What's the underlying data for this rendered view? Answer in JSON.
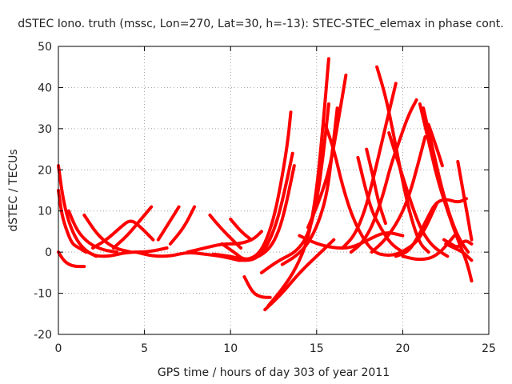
{
  "chart_data": {
    "type": "scatter",
    "title": "dSTEC Iono. truth (mssc, Lon=270, Lat=30, h=-13): STEC-STEC_elemax in phase cont.",
    "xlabel": "GPS time / hours of day 303 of year 2011",
    "ylabel": "dSTEC  / TECUs",
    "xlim": [
      0,
      25
    ],
    "ylim": [
      -20,
      50
    ],
    "xticks": [
      0,
      5,
      10,
      15,
      20,
      25
    ],
    "yticks": [
      -20,
      -10,
      0,
      10,
      20,
      30,
      40,
      50
    ],
    "grid": true,
    "marker_color": "#ff0000",
    "series": [
      {
        "x": [
          0.0,
          0.3,
          0.7,
          1.2,
          1.7,
          2.2
        ],
        "y": [
          21,
          12,
          6,
          2,
          0,
          -1
        ]
      },
      {
        "x": [
          0.0,
          0.2,
          0.5,
          0.8,
          1.2,
          1.6
        ],
        "y": [
          15,
          9,
          5,
          2,
          1,
          0
        ]
      },
      {
        "x": [
          0.0,
          0.3,
          0.6,
          1.0,
          1.5
        ],
        "y": [
          0,
          -2,
          -3,
          -3.5,
          -3.5
        ]
      },
      {
        "x": [
          0.6,
          1.1,
          1.8,
          2.6,
          3.4
        ],
        "y": [
          10,
          5,
          2,
          0.5,
          0
        ]
      },
      {
        "x": [
          1.5,
          2.3,
          3.2,
          4.2
        ],
        "y": [
          9,
          4,
          1,
          0
        ]
      },
      {
        "x": [
          1.7,
          2.2,
          3.0,
          4.0,
          5.2,
          6.3
        ],
        "y": [
          0,
          -1,
          -1,
          0,
          0,
          1
        ]
      },
      {
        "x": [
          2.0,
          2.8,
          3.6,
          4.2,
          4.8,
          5.5
        ],
        "y": [
          1,
          3,
          6,
          8,
          6,
          3
        ]
      },
      {
        "x": [
          3.2,
          4.0,
          4.8,
          5.4
        ],
        "y": [
          1,
          4,
          8,
          11
        ]
      },
      {
        "x": [
          4.5,
          5.5,
          6.5,
          7.5,
          8.5,
          9.5,
          10.5
        ],
        "y": [
          0,
          -1,
          -1,
          0,
          -0.5,
          -1,
          -2
        ]
      },
      {
        "x": [
          5.8,
          6.4,
          7.0
        ],
        "y": [
          3,
          7,
          11
        ]
      },
      {
        "x": [
          6.5,
          7.3,
          7.9
        ],
        "y": [
          2,
          6,
          11
        ]
      },
      {
        "x": [
          8.8,
          9.4,
          10.1,
          10.6
        ],
        "y": [
          9,
          6,
          3,
          1
        ]
      },
      {
        "x": [
          7.5,
          8.5,
          9.5,
          10.5,
          11.3,
          11.8
        ],
        "y": [
          0,
          1,
          2,
          2,
          3,
          5
        ]
      },
      {
        "x": [
          10.0,
          10.6,
          11.2
        ],
        "y": [
          8,
          5,
          3
        ]
      },
      {
        "x": [
          9.5,
          10.2,
          10.8,
          11.5,
          12.0,
          12.5,
          12.9,
          13.3,
          13.5
        ],
        "y": [
          2,
          0,
          -2,
          -1,
          2,
          8,
          16,
          26,
          34
        ]
      },
      {
        "x": [
          10.5,
          11.3,
          11.9,
          12.4,
          12.8,
          13.2,
          13.6
        ],
        "y": [
          -2,
          -2,
          0,
          4,
          9,
          16,
          24
        ]
      },
      {
        "x": [
          9.0,
          10.0,
          11.0,
          11.7,
          12.3,
          12.8,
          13.2,
          13.7
        ],
        "y": [
          -0.5,
          -1,
          -2,
          -1,
          1,
          5,
          11,
          21
        ]
      },
      {
        "x": [
          10.8,
          11.3,
          11.8,
          12.3
        ],
        "y": [
          -6,
          -10,
          -11,
          -11
        ]
      },
      {
        "x": [
          12.0,
          13.0,
          14.0,
          15.0,
          16.0
        ],
        "y": [
          -14,
          -10,
          -5,
          -1,
          3
        ]
      },
      {
        "x": [
          12.2,
          13.0,
          13.8,
          14.5,
          14.9,
          15.2,
          15.5,
          15.7
        ],
        "y": [
          -13,
          -9,
          -4,
          3,
          12,
          23,
          37,
          47
        ]
      },
      {
        "x": [
          11.8,
          12.8,
          13.8,
          14.5,
          15.0,
          15.4,
          15.7
        ],
        "y": [
          -5,
          -2,
          0,
          4,
          12,
          24,
          36
        ]
      },
      {
        "x": [
          13.0,
          13.8,
          14.5,
          15.1,
          15.6,
          15.9,
          16.2
        ],
        "y": [
          -3,
          -1,
          2,
          7,
          14,
          24,
          35
        ]
      },
      {
        "x": [
          14.5,
          15.2,
          15.8,
          16.3,
          16.7
        ],
        "y": [
          6,
          13,
          21,
          33,
          43
        ]
      },
      {
        "x": [
          15.5,
          16.0,
          16.5,
          17.2,
          18.2,
          19.2,
          20.0,
          21.0,
          22.0
        ],
        "y": [
          31,
          25,
          16,
          7,
          0,
          -1,
          0,
          3,
          12
        ]
      },
      {
        "x": [
          14.0,
          15.0,
          16.0,
          17.0,
          18.0,
          19.0,
          20.0
        ],
        "y": [
          4,
          2,
          1,
          1,
          3,
          5,
          4
        ]
      },
      {
        "x": [
          17.4,
          17.8,
          18.2,
          18.7,
          19.3,
          20.0
        ],
        "y": [
          23,
          16,
          10,
          6,
          2,
          0
        ]
      },
      {
        "x": [
          17.9,
          18.3,
          18.6,
          19.0
        ],
        "y": [
          25,
          18,
          12,
          7
        ]
      },
      {
        "x": [
          18.5,
          19.0,
          19.5,
          20.0,
          20.5,
          21.0,
          21.5
        ],
        "y": [
          45,
          38,
          28,
          17,
          8,
          2,
          0
        ]
      },
      {
        "x": [
          16.5,
          17.2,
          17.8,
          18.3,
          18.8,
          19.2,
          19.6
        ],
        "y": [
          1,
          4,
          10,
          18,
          27,
          34,
          41
        ]
      },
      {
        "x": [
          17.0,
          17.6,
          18.2,
          18.8,
          19.3,
          19.8,
          20.3,
          20.8
        ],
        "y": [
          0,
          2,
          6,
          13,
          21,
          27,
          33,
          37
        ]
      },
      {
        "x": [
          19.2,
          19.8,
          20.4,
          21.0,
          21.6,
          22.2,
          22.6
        ],
        "y": [
          29,
          21,
          13,
          6,
          2,
          0,
          -1
        ]
      },
      {
        "x": [
          18.2,
          19.0,
          19.8,
          20.4,
          20.8,
          21.3
        ],
        "y": [
          0,
          3,
          8,
          14,
          20,
          28
        ]
      },
      {
        "x": [
          19.6,
          20.3,
          20.8,
          21.4,
          21.9,
          22.5,
          23.2,
          23.7
        ],
        "y": [
          -1,
          0,
          3,
          8,
          12,
          13,
          12,
          13
        ]
      },
      {
        "x": [
          21.0,
          21.5,
          22.0,
          22.6,
          23.2,
          23.7,
          24.0
        ],
        "y": [
          36,
          27,
          18,
          10,
          3,
          -2,
          -7
        ]
      },
      {
        "x": [
          21.2,
          21.8,
          22.3,
          22.8,
          23.3,
          23.8
        ],
        "y": [
          35,
          24,
          15,
          8,
          3,
          0
        ]
      },
      {
        "x": [
          21.5,
          22.0,
          22.3
        ],
        "y": [
          31,
          25,
          21
        ]
      },
      {
        "x": [
          22.4,
          22.8,
          23.2,
          23.6,
          24.0
        ],
        "y": [
          3,
          2,
          1,
          3,
          2
        ]
      },
      {
        "x": [
          23.2,
          23.5,
          23.8,
          24.0
        ],
        "y": [
          22,
          15,
          8,
          3
        ]
      },
      {
        "x": [
          22.5,
          23.0,
          23.5,
          24.0
        ],
        "y": [
          2,
          1,
          0,
          -2
        ]
      },
      {
        "x": [
          20.0,
          21.0,
          22.0,
          23.0
        ],
        "y": [
          -1,
          -2,
          -1,
          4
        ]
      }
    ]
  }
}
